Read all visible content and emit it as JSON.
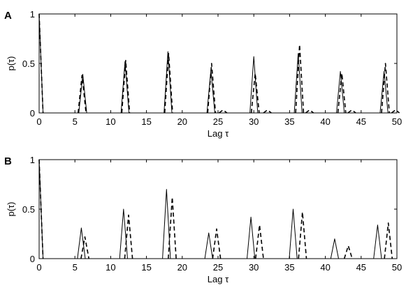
{
  "chart_data": [
    {
      "panel_label": "A",
      "type": "line",
      "xlabel": "Lag τ",
      "ylabel": "p(τ)",
      "xlim": [
        0,
        50
      ],
      "ylim": [
        0,
        1
      ],
      "xticks": [
        0,
        5,
        10,
        15,
        20,
        25,
        30,
        35,
        40,
        45,
        50
      ],
      "yticks": [
        0,
        0.5,
        1
      ],
      "grid": false,
      "series": [
        {
          "style": "solid",
          "peaks": [
            {
              "x": 0,
              "y": 1.0
            },
            {
              "x": 6.1,
              "y": 0.39
            },
            {
              "x": 12.0,
              "y": 0.52
            },
            {
              "x": 18.0,
              "y": 0.62
            },
            {
              "x": 24.0,
              "y": 0.43
            },
            {
              "x": 30.0,
              "y": 0.57
            },
            {
              "x": 36.2,
              "y": 0.6
            },
            {
              "x": 42.1,
              "y": 0.42
            },
            {
              "x": 48.2,
              "y": 0.42
            }
          ]
        },
        {
          "style": "dashed",
          "peaks": [
            {
              "x": 0,
              "y": 1.0
            },
            {
              "x": 6.0,
              "y": 0.38
            },
            {
              "x": 12.1,
              "y": 0.53
            },
            {
              "x": 18.1,
              "y": 0.6
            },
            {
              "x": 24.1,
              "y": 0.5
            },
            {
              "x": 25.7,
              "y": 0.03
            },
            {
              "x": 30.2,
              "y": 0.4
            },
            {
              "x": 31.9,
              "y": 0.03
            },
            {
              "x": 36.4,
              "y": 0.69
            },
            {
              "x": 37.8,
              "y": 0.03
            },
            {
              "x": 42.3,
              "y": 0.4
            },
            {
              "x": 43.7,
              "y": 0.03
            },
            {
              "x": 48.4,
              "y": 0.5
            },
            {
              "x": 49.8,
              "y": 0.03
            }
          ]
        }
      ]
    },
    {
      "panel_label": "B",
      "type": "line",
      "xlabel": "Lag τ",
      "ylabel": "p(τ)",
      "xlim": [
        0,
        50
      ],
      "ylim": [
        0,
        1
      ],
      "xticks": [
        0,
        5,
        10,
        15,
        20,
        25,
        30,
        35,
        40,
        45,
        50
      ],
      "yticks": [
        0,
        0.5,
        1
      ],
      "grid": false,
      "series": [
        {
          "style": "solid",
          "peaks": [
            {
              "x": 0,
              "y": 1.0
            },
            {
              "x": 5.9,
              "y": 0.31
            },
            {
              "x": 11.8,
              "y": 0.5
            },
            {
              "x": 17.8,
              "y": 0.7
            },
            {
              "x": 23.7,
              "y": 0.26
            },
            {
              "x": 29.6,
              "y": 0.42
            },
            {
              "x": 35.5,
              "y": 0.5
            },
            {
              "x": 41.3,
              "y": 0.2
            },
            {
              "x": 47.3,
              "y": 0.34
            }
          ]
        },
        {
          "style": "dashed",
          "peaks": [
            {
              "x": 0,
              "y": 1.0
            },
            {
              "x": 6.4,
              "y": 0.22
            },
            {
              "x": 12.5,
              "y": 0.44
            },
            {
              "x": 18.6,
              "y": 0.62
            },
            {
              "x": 24.8,
              "y": 0.3
            },
            {
              "x": 30.8,
              "y": 0.34
            },
            {
              "x": 36.8,
              "y": 0.47
            },
            {
              "x": 43.2,
              "y": 0.13
            },
            {
              "x": 48.8,
              "y": 0.36
            }
          ]
        }
      ]
    }
  ]
}
